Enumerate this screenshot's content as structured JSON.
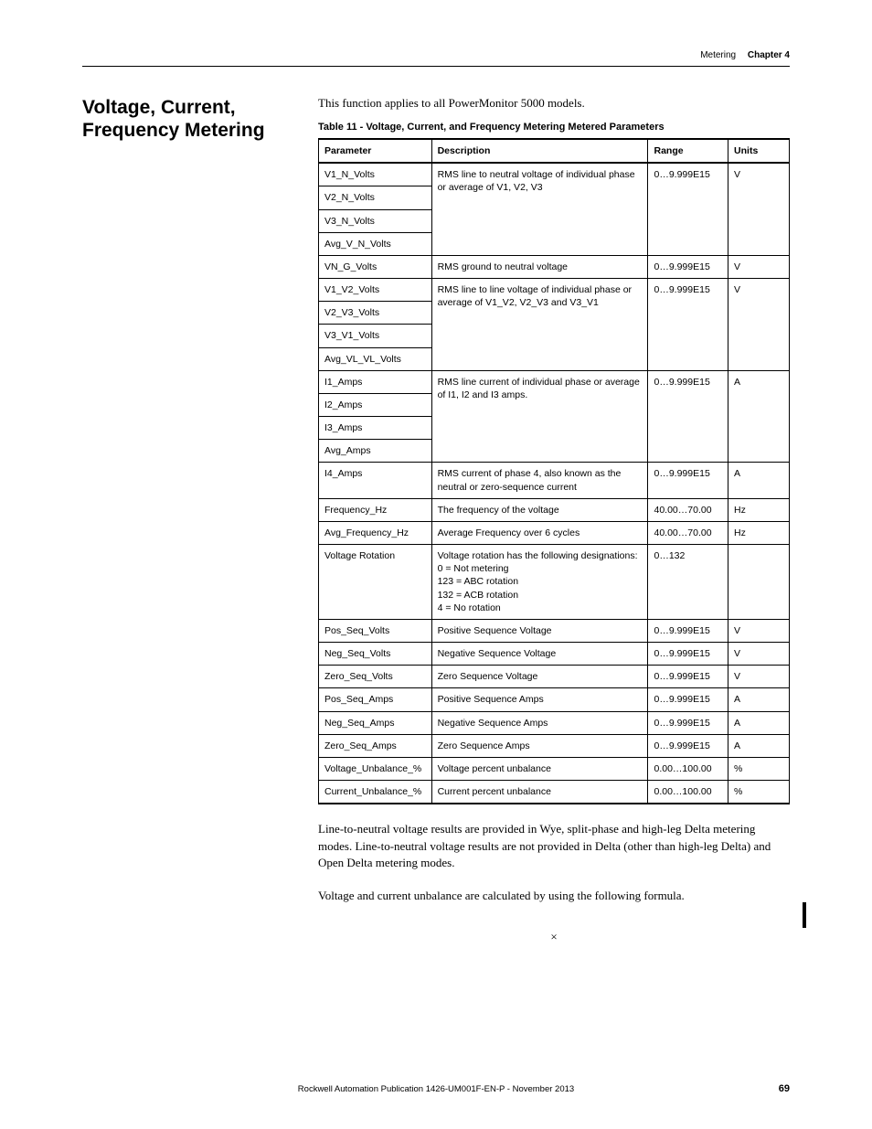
{
  "header": {
    "section": "Metering",
    "chapter": "Chapter 4"
  },
  "title": "Voltage, Current, Frequency Metering",
  "intro": "This function applies to all PowerMonitor 5000 models.",
  "table_caption": "Table 11 - Voltage, Current, and Frequency Metering Metered Parameters",
  "columns": {
    "parameter": "Parameter",
    "description": "Description",
    "range": "Range",
    "units": "Units"
  },
  "rows": {
    "r1": {
      "param": "V1_N_Volts",
      "desc": "RMS line to neutral voltage of individual phase or average of V1, V2, V3",
      "range": "0…9.999E15",
      "units": "V"
    },
    "r2": {
      "param": "V2_N_Volts"
    },
    "r3": {
      "param": "V3_N_Volts"
    },
    "r4": {
      "param": "Avg_V_N_Volts"
    },
    "r5": {
      "param": "VN_G_Volts",
      "desc": "RMS ground to neutral voltage",
      "range": "0…9.999E15",
      "units": "V"
    },
    "r6": {
      "param": "V1_V2_Volts",
      "desc": "RMS line to line voltage of individual phase or average of V1_V2, V2_V3 and V3_V1",
      "range": "0…9.999E15",
      "units": "V"
    },
    "r7": {
      "param": "V2_V3_Volts"
    },
    "r8": {
      "param": "V3_V1_Volts"
    },
    "r9": {
      "param": "Avg_VL_VL_Volts"
    },
    "r10": {
      "param": "I1_Amps",
      "desc": "RMS line current of individual phase or average of I1, I2 and I3 amps.",
      "range": "0…9.999E15",
      "units": "A"
    },
    "r11": {
      "param": "I2_Amps"
    },
    "r12": {
      "param": "I3_Amps"
    },
    "r13": {
      "param": "Avg_Amps"
    },
    "r14": {
      "param": "I4_Amps",
      "desc": "RMS current of phase 4, also known as the neutral or zero-sequence current",
      "range": "0…9.999E15",
      "units": "A"
    },
    "r15": {
      "param": "Frequency_Hz",
      "desc": "The frequency of the voltage",
      "range": "40.00…70.00",
      "units": "Hz"
    },
    "r16": {
      "param": "Avg_Frequency_Hz",
      "desc": "Average Frequency over 6 cycles",
      "range": "40.00…70.00",
      "units": "Hz"
    },
    "r17": {
      "param": "Voltage Rotation",
      "desc": "Voltage rotation has the following designations:\n0 = Not metering\n123 = ABC rotation\n132 = ACB rotation\n4 = No rotation",
      "range": "0…132",
      "units": ""
    },
    "r18": {
      "param": "Pos_Seq_Volts",
      "desc": "Positive Sequence Voltage",
      "range": "0…9.999E15",
      "units": "V"
    },
    "r19": {
      "param": "Neg_Seq_Volts",
      "desc": "Negative Sequence Voltage",
      "range": "0…9.999E15",
      "units": "V"
    },
    "r20": {
      "param": "Zero_Seq_Volts",
      "desc": "Zero Sequence Voltage",
      "range": "0…9.999E15",
      "units": "V"
    },
    "r21": {
      "param": "Pos_Seq_Amps",
      "desc": "Positive Sequence Amps",
      "range": "0…9.999E15",
      "units": "A"
    },
    "r22": {
      "param": "Neg_Seq_Amps",
      "desc": "Negative Sequence Amps",
      "range": "0…9.999E15",
      "units": "A"
    },
    "r23": {
      "param": "Zero_Seq_Amps",
      "desc": "Zero Sequence Amps",
      "range": "0…9.999E15",
      "units": "A"
    },
    "r24": {
      "param": "Voltage_Unbalance_%",
      "desc": "Voltage percent unbalance",
      "range": "0.00…100.00",
      "units": "%"
    },
    "r25": {
      "param": "Current_Unbalance_%",
      "desc": "Current percent unbalance",
      "range": "0.00…100.00",
      "units": "%"
    }
  },
  "body1": "Line-to-neutral voltage results are provided in Wye, split-phase and high-leg Delta metering modes. Line-to-neutral voltage results are not provided in Delta (other than high-leg Delta) and Open Delta metering modes.",
  "body2": "Voltage and current unbalance are calculated by using the following formula.",
  "formula_symbol": "×",
  "footer": {
    "text": "Rockwell Automation Publication 1426-UM001F-EN-P - November 2013",
    "page": "69"
  }
}
